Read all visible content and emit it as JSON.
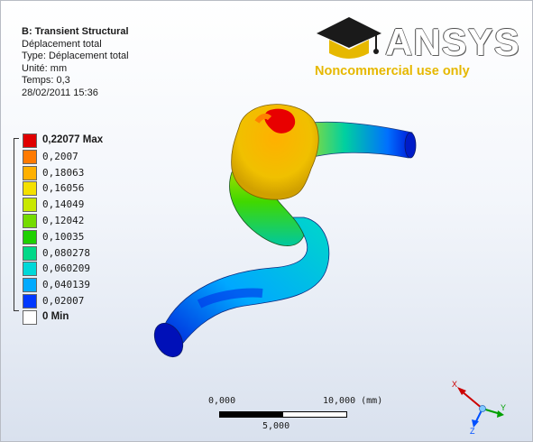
{
  "info": {
    "title": "B: Transient Structural",
    "line1": "Déplacement total",
    "line2": "Type: Déplacement total",
    "line3": "Unité: mm",
    "line4": "Temps: 0,3",
    "line5": "28/02/2011 15:36"
  },
  "logo": {
    "word": "ANSYS",
    "subtitle": "Noncommercial use only"
  },
  "legend": [
    {
      "label": "0,22077 Max",
      "color": "#e00000",
      "bold": true
    },
    {
      "label": "0,2007",
      "color": "#ff7a00",
      "bold": false
    },
    {
      "label": "0,18063",
      "color": "#ffb000",
      "bold": false
    },
    {
      "label": "0,16056",
      "color": "#f4e000",
      "bold": false
    },
    {
      "label": "0,14049",
      "color": "#c8e800",
      "bold": false
    },
    {
      "label": "0,12042",
      "color": "#74dc00",
      "bold": false
    },
    {
      "label": "0,10035",
      "color": "#1ed000",
      "bold": false
    },
    {
      "label": "0,080278",
      "color": "#00d888",
      "bold": false
    },
    {
      "label": "0,060209",
      "color": "#00d8d8",
      "bold": false
    },
    {
      "label": "0,040139",
      "color": "#00aaff",
      "bold": false
    },
    {
      "label": "0,02007",
      "color": "#0038ff",
      "bold": false
    },
    {
      "label": "0 Min",
      "color": "#ffffff",
      "bold": true
    }
  ],
  "scale": {
    "left": "0,000",
    "right": "10,000 (mm)",
    "mid": "5,000"
  },
  "axes": {
    "x": "X",
    "y": "Y",
    "z": "Z"
  }
}
